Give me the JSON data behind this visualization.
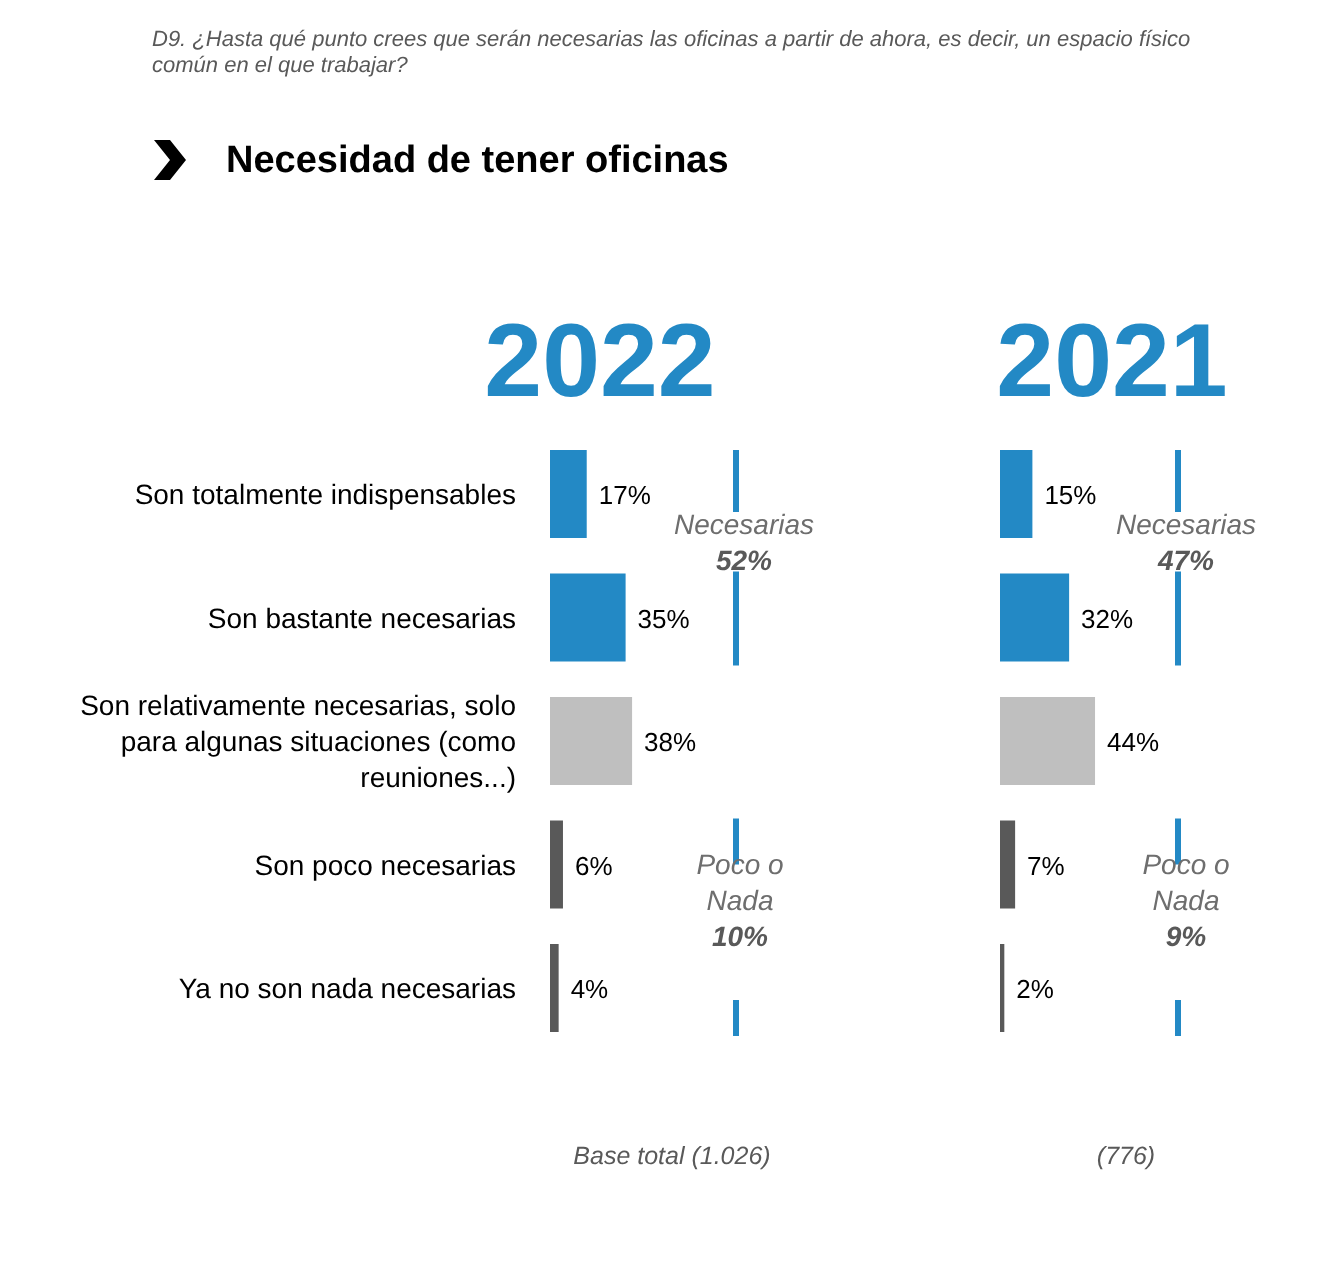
{
  "chart_data": [
    {
      "type": "bar",
      "orientation": "horizontal",
      "title": "2022",
      "categories": [
        "Son totalmente indispensables",
        "Son bastante necesarias",
        "Son relativamente necesarias, solo para algunas situaciones (como reuniones...)",
        "Son poco necesarias",
        "Ya no son nada necesarias"
      ],
      "values": [
        17,
        35,
        38,
        6,
        4
      ],
      "colors": [
        "#2389c5",
        "#2389c5",
        "#bfbfbf",
        "#595959",
        "#595959"
      ],
      "value_labels": [
        "17%",
        "35%",
        "38%",
        "6%",
        "4%"
      ],
      "annotations": [
        "D9. ¿Hasta qué punto crees que serán necesarias las oficinas a partir de ahora, es decir, un espacio físico\ncomún en el que trabajar?",
        "Necesidad de tener oficinas",
        "Necesarias\n52%",
        "Poco o\nNada\n10%",
        "Base total (1.026)"
      ]
    },
    {
      "type": "bar",
      "orientation": "horizontal",
      "title": "2021",
      "categories": [
        null,
        null,
        null,
        null,
        null
      ],
      "values": [
        15,
        32,
        44,
        7,
        2
      ],
      "colors": [
        "#2389c5",
        "#2389c5",
        "#bfbfbf",
        "#595959",
        "#595959"
      ],
      "value_labels": [
        "15%",
        "32%",
        "44%",
        "7%",
        "2%"
      ],
      "annotations": [
        "Necesarias\n47%",
        "Poco o\nNada\n9%",
        "(776)"
      ]
    }
  ]
}
